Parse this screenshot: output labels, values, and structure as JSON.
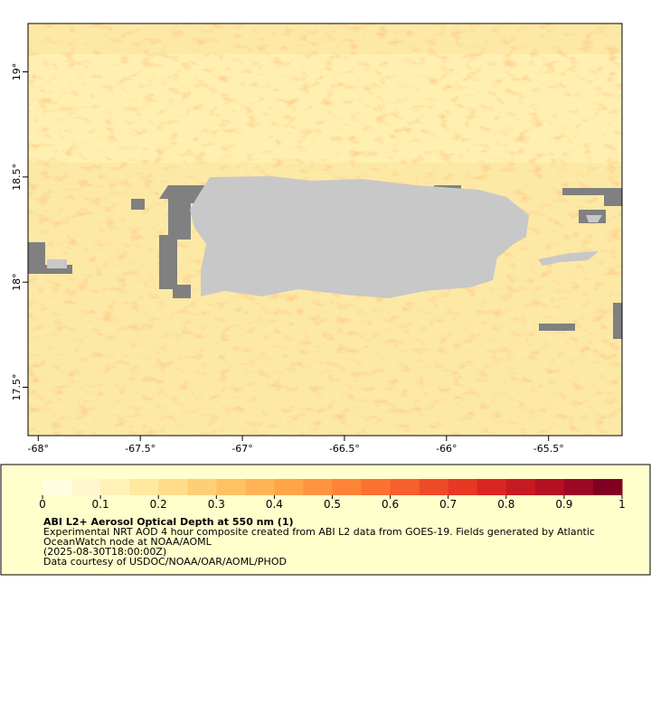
{
  "map": {
    "xlim": [
      -68.05,
      -65.14
    ],
    "ylim": [
      17.27,
      19.23
    ],
    "xticks": [
      {
        "value": -68,
        "label": "-68°"
      },
      {
        "value": -67.5,
        "label": "-67.5°"
      },
      {
        "value": -67,
        "label": "-67°"
      },
      {
        "value": -66.5,
        "label": "-66.5°"
      },
      {
        "value": -66,
        "label": "-66°"
      },
      {
        "value": -65.5,
        "label": "-65.5°"
      }
    ],
    "yticks": [
      {
        "value": 19,
        "label": "19°"
      },
      {
        "value": 18.5,
        "label": "18.5°"
      },
      {
        "value": 18,
        "label": "18°"
      },
      {
        "value": 17.5,
        "label": "17.5°"
      }
    ]
  },
  "colorbar": {
    "ticks": [
      0,
      0.1,
      0.2,
      0.3,
      0.4,
      0.5,
      0.6,
      0.7,
      0.8,
      0.9,
      1
    ],
    "colors": [
      "#ffffe0",
      "#fff8cc",
      "#fff1b8",
      "#ffe8a0",
      "#fedc8a",
      "#fed076",
      "#fec264",
      "#feb456",
      "#fea54a",
      "#fd9540",
      "#fc8438",
      "#fb7232",
      "#f75f2c",
      "#f04b28",
      "#e63824",
      "#d92622",
      "#c81a22",
      "#b41024",
      "#9c0824",
      "#820022"
    ]
  },
  "caption": {
    "title": "ABI L2+ Aerosol Optical Depth at 550 nm (1)",
    "lines": [
      "Experimental NRT AOD 4 hour composite created from ABI L2 data from GOES-19. Fields generated by Atlantic",
      "OceanWatch node at NOAA/AOML",
      "(2025-08-30T18:00:00Z)",
      "Data courtesy of USDOC/NOAA/OAR/AOML/PHOD"
    ]
  }
}
